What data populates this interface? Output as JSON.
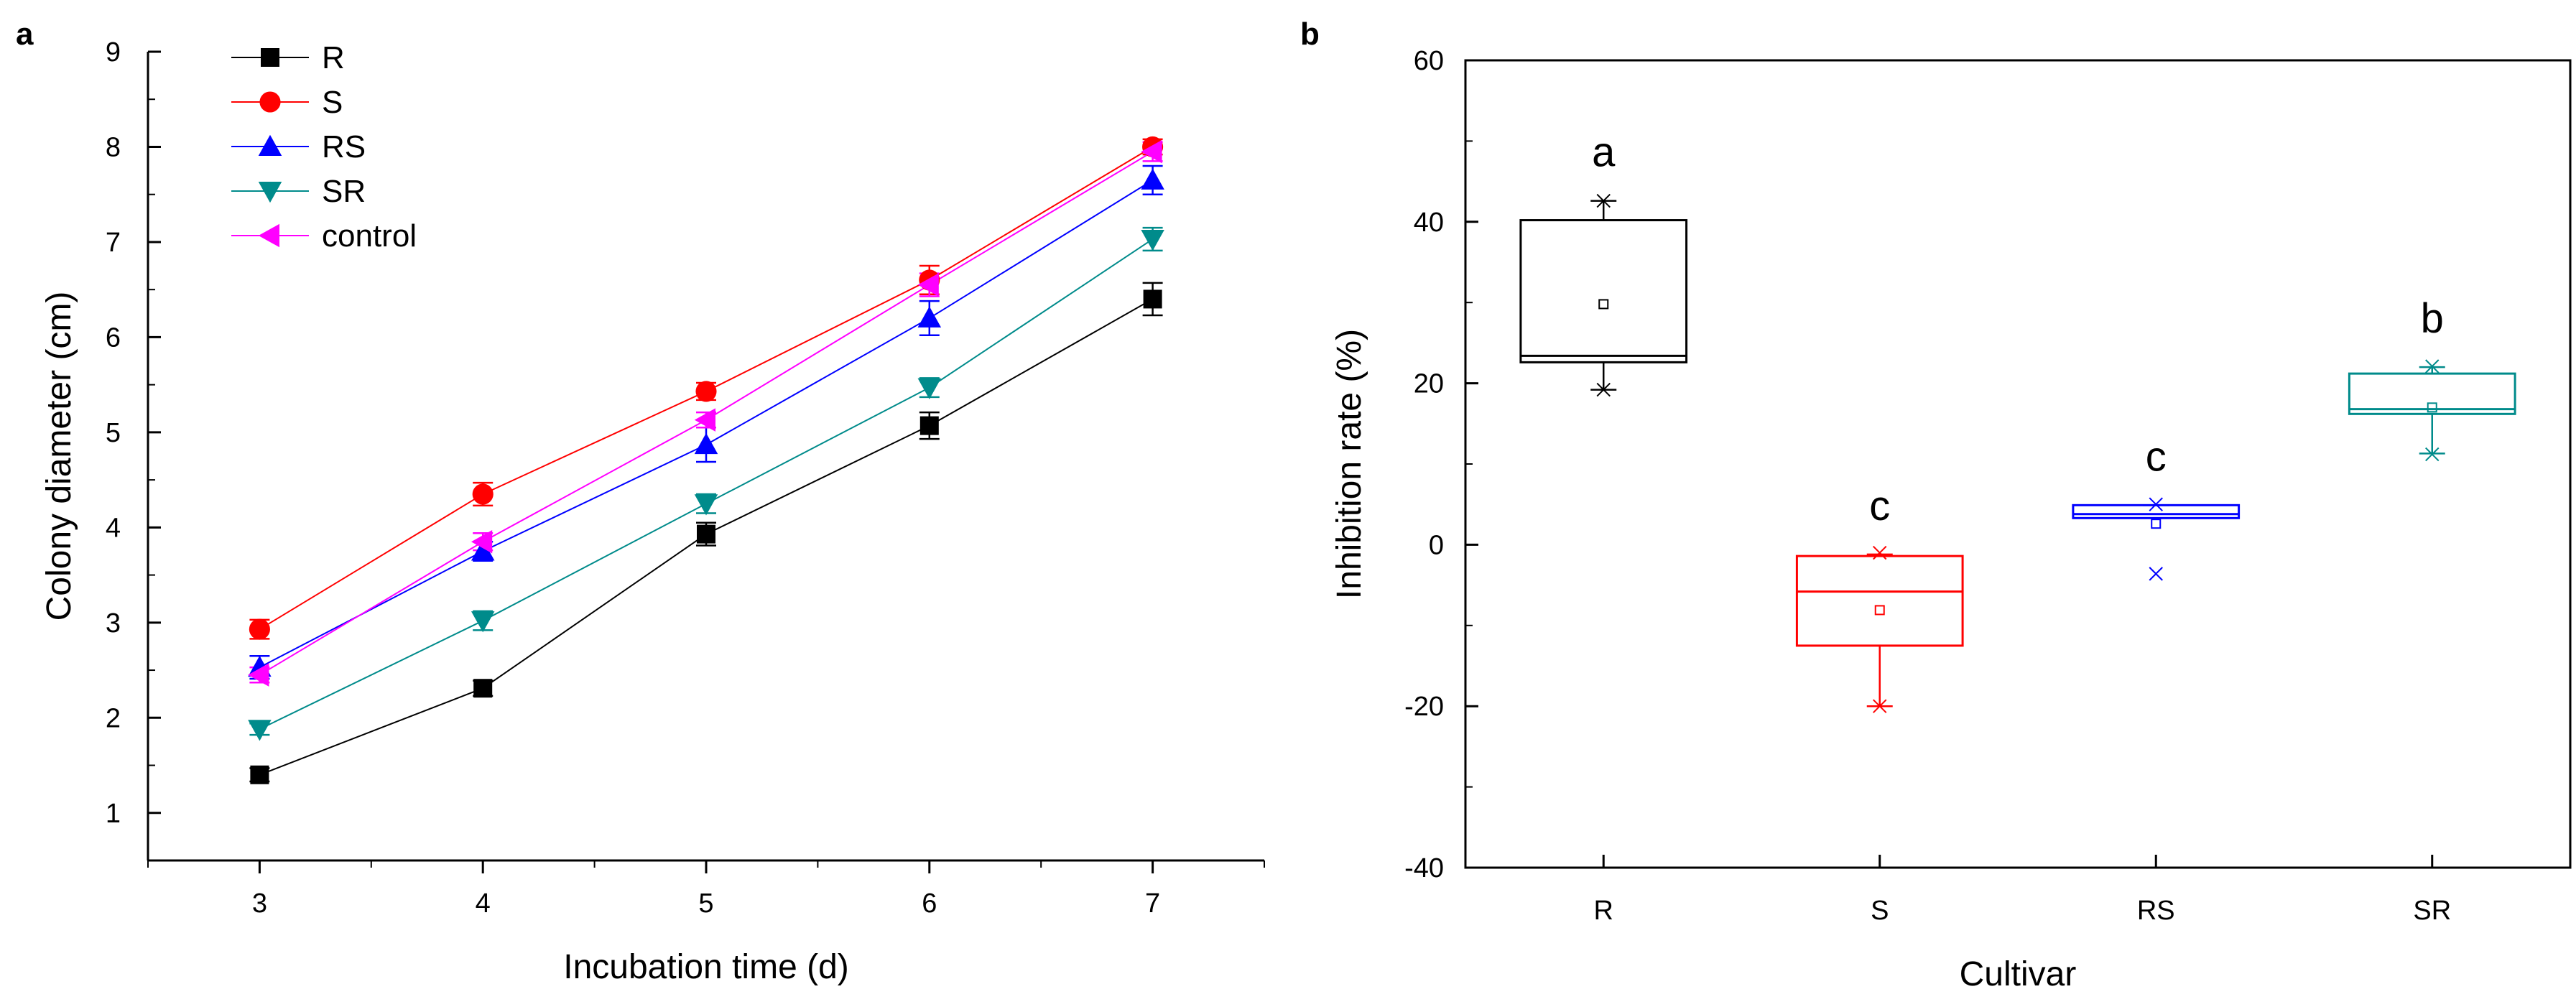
{
  "panels": {
    "a": {
      "label": "a"
    },
    "b": {
      "label": "b"
    }
  },
  "chart_data": [
    {
      "type": "line",
      "panel": "a",
      "title": "",
      "xlabel": "Incubation time (d)",
      "ylabel": "Colony diameter (cm)",
      "x": [
        3,
        4,
        5,
        6,
        7
      ],
      "xticks": [
        "3",
        "4",
        "5",
        "6",
        "7"
      ],
      "xlim": [
        2.5,
        7.5
      ],
      "ylim": [
        0.5,
        9
      ],
      "yticks": [
        "1",
        "2",
        "3",
        "4",
        "5",
        "6",
        "7",
        "8",
        "9"
      ],
      "legend_position": "top-left",
      "series": [
        {
          "name": "R",
          "color": "#000000",
          "marker": "square",
          "values": [
            1.4,
            2.31,
            3.93,
            5.07,
            6.4
          ],
          "errors": [
            0.07,
            0.08,
            0.12,
            0.14,
            0.17
          ]
        },
        {
          "name": "S",
          "color": "#ff0000",
          "marker": "circle",
          "values": [
            2.93,
            4.35,
            5.43,
            6.6,
            8.0
          ],
          "errors": [
            0.1,
            0.12,
            0.09,
            0.15,
            0.08
          ]
        },
        {
          "name": "RS",
          "color": "#0000ff",
          "marker": "triangle-up",
          "values": [
            2.53,
            3.75,
            4.87,
            6.2,
            7.65
          ],
          "errors": [
            0.12,
            0.1,
            0.18,
            0.18,
            0.15
          ]
        },
        {
          "name": "SR",
          "color": "#008b8b",
          "marker": "triangle-down",
          "values": [
            1.88,
            3.02,
            4.25,
            5.47,
            7.03
          ],
          "errors": [
            0.06,
            0.1,
            0.1,
            0.1,
            0.12
          ]
        },
        {
          "name": "control",
          "color": "#ff00ff",
          "marker": "triangle-left",
          "values": [
            2.45,
            3.85,
            5.13,
            6.55,
            7.95
          ],
          "errors": [
            0.08,
            0.09,
            0.08,
            0.12,
            0.1
          ]
        }
      ]
    },
    {
      "type": "box",
      "panel": "b",
      "title": "",
      "xlabel": "Cultivar",
      "ylabel": "Inhibition rate (%)",
      "categories": [
        "R",
        "S",
        "RS",
        "SR"
      ],
      "ylim": [
        -40,
        60
      ],
      "yticks": [
        "-40",
        "-20",
        "0",
        "20",
        "40",
        "60"
      ],
      "boxes": [
        {
          "category": "R",
          "color": "#000000",
          "q1": 22.6,
          "median": 23.4,
          "q3": 40.2,
          "mean": 29.8,
          "whisker_low": 19.2,
          "whisker_high": 42.6,
          "min": 19.2,
          "max": 42.6,
          "letter": "a"
        },
        {
          "category": "S",
          "color": "#ff0000",
          "q1": -12.5,
          "median": -5.8,
          "q3": -1.4,
          "mean": -8.1,
          "whisker_low": -20.0,
          "whisker_high": -1.2,
          "min": -20.0,
          "max": -1.0,
          "letter": "c"
        },
        {
          "category": "RS",
          "color": "#0000ff",
          "q1": 3.3,
          "median": 3.8,
          "q3": 4.9,
          "mean": 2.6,
          "whisker_low": 3.3,
          "whisker_high": 4.9,
          "min": -3.6,
          "max": 5.0,
          "letter": "c"
        },
        {
          "category": "SR",
          "color": "#008b8b",
          "q1": 16.2,
          "median": 16.8,
          "q3": 21.2,
          "mean": 17.0,
          "whisker_low": 11.3,
          "whisker_high": 22.0,
          "min": 11.2,
          "max": 22.1,
          "letter": "b"
        }
      ]
    }
  ]
}
